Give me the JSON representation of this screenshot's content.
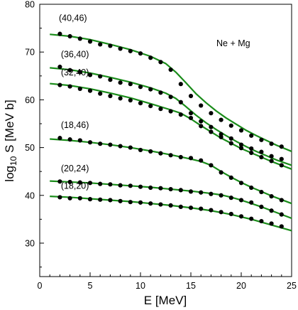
{
  "chart_data": {
    "type": "scatter",
    "title": "",
    "system_label": "Ne + Mg",
    "xlabel": "E [MeV]",
    "ylabel_prefix": "log",
    "ylabel_sub": "10",
    "ylabel_rest": " S [MeV b]",
    "xlim": [
      0,
      25
    ],
    "ylim": [
      23,
      80
    ],
    "xticks": [
      0,
      5,
      10,
      15,
      20,
      25
    ],
    "yticks": [
      30,
      40,
      50,
      60,
      70,
      80
    ],
    "grid": false,
    "colors": {
      "fit_line": "#1a8c1a",
      "points": "#000000",
      "axes": "#000000"
    },
    "series": [
      {
        "name": "(40,46)",
        "label_x": 1.9,
        "label_y": 76.5,
        "points": [
          [
            2,
            73.8
          ],
          [
            3,
            73.3
          ],
          [
            4,
            72.8
          ],
          [
            5,
            72.2
          ],
          [
            6,
            71.6
          ],
          [
            7,
            71.3
          ],
          [
            8,
            70.7
          ],
          [
            9,
            70.2
          ],
          [
            10,
            69.7
          ],
          [
            11,
            68.8
          ],
          [
            12,
            67.9
          ],
          [
            13,
            66.3
          ],
          [
            14,
            63.3
          ],
          [
            15,
            60.8
          ],
          [
            16,
            58.8
          ],
          [
            17,
            57.2
          ],
          [
            18,
            55.8
          ],
          [
            19,
            54.6
          ],
          [
            20,
            53.6
          ],
          [
            21,
            52.5
          ],
          [
            22,
            51.6
          ],
          [
            23,
            50.8
          ],
          [
            24,
            50.2
          ]
        ],
        "fit": [
          [
            1,
            73.7
          ],
          [
            3,
            73.3
          ],
          [
            5,
            72.6
          ],
          [
            7,
            71.6
          ],
          [
            9,
            70.5
          ],
          [
            11,
            69.1
          ],
          [
            12.5,
            67.6
          ],
          [
            13.5,
            65.8
          ],
          [
            14.5,
            63.6
          ],
          [
            15.5,
            61.3
          ],
          [
            16.5,
            59.4
          ],
          [
            17.5,
            57.7
          ],
          [
            18.5,
            56.2
          ],
          [
            19.5,
            54.9
          ],
          [
            20.5,
            53.6
          ],
          [
            21.5,
            52.5
          ],
          [
            22.5,
            51.5
          ],
          [
            23.5,
            50.5
          ],
          [
            25,
            49.2
          ]
        ]
      },
      {
        "name": "(36,40)",
        "label_x": 2.1,
        "label_y": 68.9,
        "points": [
          [
            2,
            66.9
          ],
          [
            3,
            66.2
          ],
          [
            4,
            65.8
          ],
          [
            5,
            65.2
          ],
          [
            6,
            64.9
          ],
          [
            7,
            64.2
          ],
          [
            8,
            63.6
          ],
          [
            9,
            63.3
          ],
          [
            10,
            62.7
          ],
          [
            11,
            62.2
          ],
          [
            12,
            61.5
          ],
          [
            13,
            60.6
          ],
          [
            14,
            59.5
          ],
          [
            15,
            57.2
          ],
          [
            16,
            55.5
          ],
          [
            17,
            54.3
          ],
          [
            18,
            52.8
          ],
          [
            19,
            51.9
          ],
          [
            20,
            50.6
          ],
          [
            21,
            49.8
          ],
          [
            22,
            49.1
          ],
          [
            23,
            48.2
          ],
          [
            24,
            47.6
          ]
        ],
        "fit": [
          [
            1,
            66.7
          ],
          [
            3,
            66.3
          ],
          [
            5,
            65.6
          ],
          [
            7,
            64.7
          ],
          [
            9,
            63.7
          ],
          [
            11,
            62.5
          ],
          [
            12.5,
            61.4
          ],
          [
            13.5,
            60.3
          ],
          [
            14.5,
            58.6
          ],
          [
            15.5,
            56.8
          ],
          [
            16.5,
            55.2
          ],
          [
            17.5,
            53.8
          ],
          [
            18.5,
            52.5
          ],
          [
            19.5,
            51.3
          ],
          [
            20.5,
            50.2
          ],
          [
            21.5,
            49.2
          ],
          [
            22.5,
            48.3
          ],
          [
            23.5,
            47.4
          ],
          [
            25,
            46.3
          ]
        ]
      },
      {
        "name": "(32,40)",
        "label_x": 2.1,
        "label_y": 65.1,
        "points": [
          [
            2,
            63.1
          ],
          [
            3,
            62.8
          ],
          [
            4,
            62.3
          ],
          [
            5,
            61.9
          ],
          [
            6,
            61.3
          ],
          [
            7,
            60.8
          ],
          [
            8,
            60.3
          ],
          [
            9,
            59.9
          ],
          [
            10,
            59.3
          ],
          [
            11,
            58.7
          ],
          [
            12,
            58.1
          ],
          [
            13,
            57.6
          ],
          [
            14,
            56.9
          ],
          [
            15,
            56.2
          ],
          [
            16,
            54.5
          ],
          [
            17,
            53.3
          ],
          [
            18,
            52.2
          ],
          [
            19,
            50.9
          ],
          [
            20,
            49.9
          ],
          [
            21,
            48.9
          ],
          [
            22,
            48.0
          ],
          [
            23,
            47.2
          ],
          [
            24,
            46.3
          ]
        ],
        "fit": [
          [
            1,
            63.4
          ],
          [
            3,
            63.0
          ],
          [
            5,
            62.3
          ],
          [
            7,
            61.4
          ],
          [
            9,
            60.4
          ],
          [
            11,
            59.2
          ],
          [
            13,
            57.9
          ],
          [
            14,
            57.2
          ],
          [
            15,
            56.0
          ],
          [
            16,
            54.6
          ],
          [
            17,
            53.3
          ],
          [
            18,
            52.0
          ],
          [
            19,
            50.9
          ],
          [
            20,
            49.8
          ],
          [
            21,
            48.9
          ],
          [
            22,
            48.0
          ],
          [
            23,
            47.1
          ],
          [
            25,
            45.5
          ]
        ]
      },
      {
        "name": "(18,46)",
        "label_x": 2.1,
        "label_y": 54.1,
        "points": [
          [
            2,
            52.0
          ],
          [
            3,
            51.7
          ],
          [
            4,
            51.5
          ],
          [
            5,
            51.1
          ],
          [
            6,
            50.8
          ],
          [
            7,
            50.6
          ],
          [
            8,
            50.3
          ],
          [
            9,
            50.0
          ],
          [
            10,
            49.5
          ],
          [
            11,
            49.2
          ],
          [
            12,
            48.8
          ],
          [
            13,
            48.4
          ],
          [
            14,
            48.0
          ],
          [
            15,
            47.8
          ],
          [
            16,
            47.3
          ],
          [
            17,
            46.3
          ],
          [
            18,
            44.8
          ],
          [
            19,
            43.7
          ],
          [
            20,
            42.6
          ],
          [
            21,
            41.6
          ],
          [
            22,
            40.7
          ],
          [
            23,
            39.8
          ],
          [
            24,
            39.0
          ]
        ],
        "fit": [
          [
            1,
            51.8
          ],
          [
            3,
            51.5
          ],
          [
            5,
            51.1
          ],
          [
            7,
            50.6
          ],
          [
            9,
            50.0
          ],
          [
            11,
            49.3
          ],
          [
            13,
            48.5
          ],
          [
            15,
            47.6
          ],
          [
            16,
            47.1
          ],
          [
            17,
            46.3
          ],
          [
            18,
            45.0
          ],
          [
            19,
            43.8
          ],
          [
            20,
            42.7
          ],
          [
            21,
            41.7
          ],
          [
            22,
            40.8
          ],
          [
            23,
            39.9
          ],
          [
            25,
            38.3
          ]
        ]
      },
      {
        "name": "(20,24)",
        "label_x": 2.1,
        "label_y": 45.0,
        "points": [
          [
            2,
            42.9
          ],
          [
            3,
            42.8
          ],
          [
            4,
            42.7
          ],
          [
            5,
            42.6
          ],
          [
            6,
            42.4
          ],
          [
            7,
            42.3
          ],
          [
            8,
            42.1
          ],
          [
            9,
            42.0
          ],
          [
            10,
            41.8
          ],
          [
            11,
            41.6
          ],
          [
            12,
            41.5
          ],
          [
            13,
            41.3
          ],
          [
            14,
            41.1
          ],
          [
            15,
            40.8
          ],
          [
            16,
            40.6
          ],
          [
            17,
            40.3
          ],
          [
            18,
            40.0
          ],
          [
            19,
            39.5
          ],
          [
            20,
            39.0
          ],
          [
            21,
            38.5
          ],
          [
            22,
            37.6
          ],
          [
            23,
            36.8
          ],
          [
            24,
            36.0
          ]
        ],
        "fit": [
          [
            1,
            43.0
          ],
          [
            3,
            42.8
          ],
          [
            5,
            42.6
          ],
          [
            7,
            42.3
          ],
          [
            9,
            42.0
          ],
          [
            11,
            41.7
          ],
          [
            13,
            41.3
          ],
          [
            15,
            40.9
          ],
          [
            17,
            40.4
          ],
          [
            18,
            40.1
          ],
          [
            19,
            39.6
          ],
          [
            20,
            39.0
          ],
          [
            21,
            38.3
          ],
          [
            22,
            37.6
          ],
          [
            23,
            36.8
          ],
          [
            24,
            36.0
          ],
          [
            25,
            35.2
          ]
        ]
      },
      {
        "name": "(18,20)",
        "label_x": 2.1,
        "label_y": 41.4,
        "points": [
          [
            2,
            39.6
          ],
          [
            3,
            39.4
          ],
          [
            4,
            39.4
          ],
          [
            5,
            39.2
          ],
          [
            6,
            39.1
          ],
          [
            7,
            39.0
          ],
          [
            8,
            38.8
          ],
          [
            9,
            38.6
          ],
          [
            10,
            38.5
          ],
          [
            11,
            38.3
          ],
          [
            12,
            38.1
          ],
          [
            13,
            37.9
          ],
          [
            14,
            37.6
          ],
          [
            15,
            37.4
          ],
          [
            16,
            37.2
          ],
          [
            17,
            36.9
          ],
          [
            18,
            36.5
          ],
          [
            19,
            36.1
          ],
          [
            20,
            35.6
          ],
          [
            21,
            35.1
          ],
          [
            22,
            34.6
          ],
          [
            23,
            34.1
          ],
          [
            24,
            33.5
          ]
        ],
        "fit": [
          [
            1,
            39.8
          ],
          [
            3,
            39.6
          ],
          [
            5,
            39.3
          ],
          [
            7,
            39.0
          ],
          [
            9,
            38.7
          ],
          [
            11,
            38.3
          ],
          [
            13,
            37.9
          ],
          [
            15,
            37.4
          ],
          [
            17,
            36.8
          ],
          [
            18,
            36.4
          ],
          [
            19,
            36.0
          ],
          [
            20,
            35.5
          ],
          [
            21,
            35.0
          ],
          [
            22,
            34.4
          ],
          [
            23,
            33.8
          ],
          [
            24,
            33.2
          ],
          [
            25,
            32.6
          ]
        ]
      }
    ]
  }
}
